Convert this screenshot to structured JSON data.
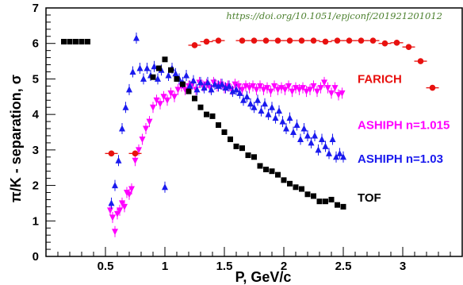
{
  "chart_data": {
    "type": "scatter",
    "annotation": "https://doi.org/10.1051/epjconf/201921201012",
    "xlabel": "P, GeV/c",
    "ylabel": "π/K - separation, σ",
    "xlim": [
      0.0,
      3.5
    ],
    "ylim": [
      0,
      7
    ],
    "xticks": [
      0.5,
      1,
      1.5,
      2,
      2.5,
      3
    ],
    "xtick_labels": [
      "0.5",
      "1",
      "1.5",
      "2",
      "2.5",
      "3"
    ],
    "yticks": [
      0,
      1,
      2,
      3,
      4,
      5,
      6,
      7
    ],
    "ytick_labels": [
      "0",
      "1",
      "2",
      "3",
      "4",
      "5",
      "6",
      "7"
    ],
    "grid": false,
    "series": [
      {
        "name": "FARICH",
        "color": "#e8110f",
        "marker": "circle",
        "label_anchor": [
          2.62,
          5.0
        ],
        "points": [
          [
            0.55,
            2.9
          ],
          [
            0.75,
            2.9
          ],
          [
            1.25,
            5.95
          ],
          [
            1.35,
            6.05
          ],
          [
            1.45,
            6.08
          ],
          [
            1.65,
            6.08
          ],
          [
            1.75,
            6.08
          ],
          [
            1.85,
            6.08
          ],
          [
            1.95,
            6.08
          ],
          [
            2.05,
            6.08
          ],
          [
            2.15,
            6.08
          ],
          [
            2.25,
            6.08
          ],
          [
            2.35,
            6.05
          ],
          [
            2.45,
            6.08
          ],
          [
            2.55,
            6.08
          ],
          [
            2.65,
            6.08
          ],
          [
            2.75,
            6.08
          ],
          [
            2.85,
            6.0
          ],
          [
            2.95,
            6.02
          ],
          [
            3.05,
            5.9
          ],
          [
            3.15,
            5.5
          ],
          [
            3.25,
            4.75
          ]
        ]
      },
      {
        "name": "ASHIPH n=1.015",
        "color": "#ff00ff",
        "marker": "triangle-down",
        "label_anchor": [
          2.62,
          3.7
        ],
        "points": [
          [
            0.54,
            1.3
          ],
          [
            0.56,
            1.1
          ],
          [
            0.58,
            0.7
          ],
          [
            0.6,
            1.2
          ],
          [
            0.62,
            1.3
          ],
          [
            0.64,
            1.5
          ],
          [
            0.66,
            1.4
          ],
          [
            0.68,
            1.8
          ],
          [
            0.7,
            1.75
          ],
          [
            0.72,
            1.9
          ],
          [
            0.75,
            2.7
          ],
          [
            0.78,
            3.0
          ],
          [
            0.81,
            3.3
          ],
          [
            0.84,
            3.6
          ],
          [
            0.87,
            3.8
          ],
          [
            0.9,
            4.2
          ],
          [
            0.93,
            4.4
          ],
          [
            0.96,
            4.3
          ],
          [
            0.99,
            4.5
          ],
          [
            1.02,
            4.4
          ],
          [
            1.05,
            4.6
          ],
          [
            1.08,
            4.5
          ],
          [
            1.11,
            4.7
          ],
          [
            1.14,
            4.8
          ],
          [
            1.17,
            4.7
          ],
          [
            1.2,
            4.8
          ],
          [
            1.23,
            4.85
          ],
          [
            1.26,
            4.7
          ],
          [
            1.29,
            4.9
          ],
          [
            1.32,
            4.8
          ],
          [
            1.35,
            4.85
          ],
          [
            1.38,
            4.75
          ],
          [
            1.41,
            4.9
          ],
          [
            1.44,
            4.8
          ],
          [
            1.47,
            4.85
          ],
          [
            1.5,
            4.75
          ],
          [
            1.53,
            4.8
          ],
          [
            1.56,
            4.7
          ],
          [
            1.59,
            4.85
          ],
          [
            1.62,
            4.8
          ],
          [
            1.65,
            4.7
          ],
          [
            1.68,
            4.8
          ],
          [
            1.71,
            4.75
          ],
          [
            1.74,
            4.8
          ],
          [
            1.77,
            4.7
          ],
          [
            1.8,
            4.8
          ],
          [
            1.83,
            4.7
          ],
          [
            1.86,
            4.75
          ],
          [
            1.89,
            4.65
          ],
          [
            1.92,
            4.8
          ],
          [
            1.95,
            4.7
          ],
          [
            1.98,
            4.75
          ],
          [
            2.01,
            4.7
          ],
          [
            2.04,
            4.8
          ],
          [
            2.07,
            4.65
          ],
          [
            2.1,
            4.75
          ],
          [
            2.13,
            4.7
          ],
          [
            2.16,
            4.75
          ],
          [
            2.19,
            4.65
          ],
          [
            2.22,
            4.7
          ],
          [
            2.25,
            4.8
          ],
          [
            2.28,
            4.65
          ],
          [
            2.31,
            4.75
          ],
          [
            2.34,
            4.9
          ],
          [
            2.37,
            4.75
          ],
          [
            2.4,
            4.6
          ],
          [
            2.43,
            4.75
          ],
          [
            2.46,
            4.55
          ],
          [
            2.49,
            4.6
          ]
        ]
      },
      {
        "name": "ASHIPH n=1.03",
        "color": "#1a1aee",
        "marker": "triangle-up",
        "label_anchor": [
          2.62,
          2.75
        ],
        "points": [
          [
            0.55,
            1.5
          ],
          [
            0.58,
            2.0
          ],
          [
            0.61,
            2.7
          ],
          [
            0.64,
            3.6
          ],
          [
            0.67,
            4.2
          ],
          [
            0.7,
            4.7
          ],
          [
            0.73,
            5.2
          ],
          [
            0.76,
            6.15
          ],
          [
            0.79,
            5.3
          ],
          [
            0.82,
            5.0
          ],
          [
            0.85,
            5.3
          ],
          [
            0.88,
            5.1
          ],
          [
            0.91,
            5.35
          ],
          [
            0.94,
            5.0
          ],
          [
            0.97,
            5.25
          ],
          [
            1.0,
            1.95
          ],
          [
            1.03,
            5.1
          ],
          [
            1.06,
            5.3
          ],
          [
            1.09,
            5.15
          ],
          [
            1.12,
            5.0
          ],
          [
            1.15,
            4.9
          ],
          [
            1.18,
            5.1
          ],
          [
            1.21,
            4.8
          ],
          [
            1.24,
            4.95
          ],
          [
            1.27,
            4.7
          ],
          [
            1.3,
            4.9
          ],
          [
            1.33,
            4.75
          ],
          [
            1.36,
            4.9
          ],
          [
            1.39,
            4.7
          ],
          [
            1.42,
            4.85
          ],
          [
            1.45,
            4.8
          ],
          [
            1.48,
            4.85
          ],
          [
            1.51,
            4.75
          ],
          [
            1.54,
            4.8
          ],
          [
            1.57,
            4.65
          ],
          [
            1.6,
            4.7
          ],
          [
            1.63,
            4.6
          ],
          [
            1.66,
            4.4
          ],
          [
            1.69,
            4.5
          ],
          [
            1.72,
            4.3
          ],
          [
            1.75,
            4.2
          ],
          [
            1.78,
            4.4
          ],
          [
            1.81,
            4.1
          ],
          [
            1.84,
            4.3
          ],
          [
            1.87,
            4.0
          ],
          [
            1.9,
            4.2
          ],
          [
            1.93,
            3.9
          ],
          [
            1.96,
            4.1
          ],
          [
            1.99,
            3.8
          ],
          [
            2.02,
            3.6
          ],
          [
            2.05,
            3.9
          ],
          [
            2.08,
            3.5
          ],
          [
            2.11,
            3.7
          ],
          [
            2.14,
            3.3
          ],
          [
            2.17,
            3.6
          ],
          [
            2.2,
            3.4
          ],
          [
            2.23,
            3.2
          ],
          [
            2.26,
            3.4
          ],
          [
            2.29,
            3.0
          ],
          [
            2.32,
            3.3
          ],
          [
            2.35,
            3.1
          ],
          [
            2.38,
            2.9
          ],
          [
            2.41,
            3.3
          ],
          [
            2.44,
            2.8
          ],
          [
            2.47,
            2.9
          ],
          [
            2.5,
            2.8
          ]
        ]
      },
      {
        "name": "TOF",
        "color": "#000000",
        "marker": "square",
        "label_anchor": [
          2.62,
          1.65
        ],
        "points": [
          [
            0.15,
            6.05
          ],
          [
            0.2,
            6.05
          ],
          [
            0.25,
            6.05
          ],
          [
            0.3,
            6.05
          ],
          [
            0.35,
            6.05
          ],
          [
            0.9,
            5.05
          ],
          [
            0.95,
            5.3
          ],
          [
            1.0,
            5.55
          ],
          [
            1.05,
            5.25
          ],
          [
            1.1,
            5.0
          ],
          [
            1.15,
            4.85
          ],
          [
            1.2,
            4.65
          ],
          [
            1.25,
            4.45
          ],
          [
            1.3,
            4.2
          ],
          [
            1.35,
            4.0
          ],
          [
            1.4,
            3.95
          ],
          [
            1.45,
            3.7
          ],
          [
            1.5,
            3.5
          ],
          [
            1.55,
            3.3
          ],
          [
            1.6,
            3.1
          ],
          [
            1.65,
            3.05
          ],
          [
            1.7,
            2.85
          ],
          [
            1.75,
            2.8
          ],
          [
            1.8,
            2.55
          ],
          [
            1.85,
            2.45
          ],
          [
            1.9,
            2.4
          ],
          [
            1.95,
            2.3
          ],
          [
            2.0,
            2.15
          ],
          [
            2.05,
            2.05
          ],
          [
            2.1,
            1.95
          ],
          [
            2.15,
            1.9
          ],
          [
            2.2,
            1.75
          ],
          [
            2.25,
            1.7
          ],
          [
            2.3,
            1.55
          ],
          [
            2.35,
            1.55
          ],
          [
            2.4,
            1.6
          ],
          [
            2.45,
            1.45
          ],
          [
            2.5,
            1.4
          ]
        ]
      }
    ]
  }
}
